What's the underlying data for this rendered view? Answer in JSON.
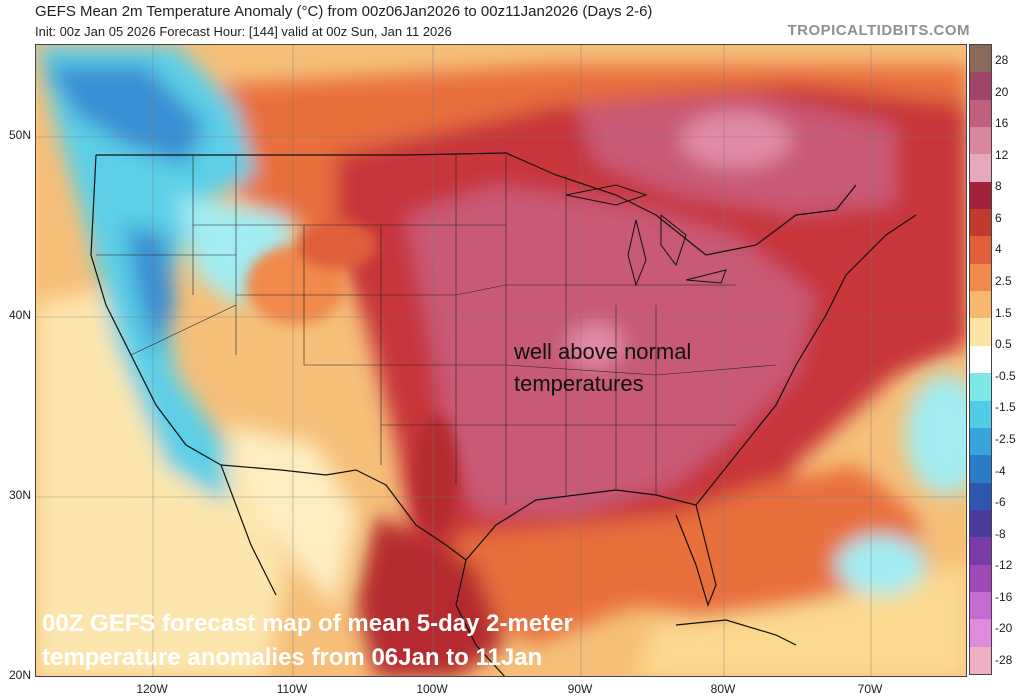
{
  "header": {
    "title": "GEFS Mean 2m Temperature Anomaly (°C) from 00z06Jan2026 to 00z11Jan2026 (Days 2-6)",
    "subtitle": "Init: 00z Jan 05 2026   Forecast Hour: [144]   valid at 00z Sun, Jan 11 2026",
    "brand": "TROPICALTIDBITS.COM"
  },
  "axes": {
    "lat_labels": [
      "50N",
      "40N",
      "30N",
      "20N"
    ],
    "lon_labels": [
      "120W",
      "110W",
      "100W",
      "90W",
      "80W",
      "70W"
    ]
  },
  "colorbar": {
    "labels": [
      "28",
      "20",
      "16",
      "12",
      "8",
      "6",
      "4",
      "2.5",
      "1.5",
      "0.5",
      "-0.5",
      "-1.5",
      "-2.5",
      "-4",
      "-6",
      "-8",
      "-12",
      "-16",
      "-20",
      "-28"
    ],
    "colors": [
      "#8a6a5a",
      "#a0466a",
      "#c0607e",
      "#d8869e",
      "#e8a8bc",
      "#a2223a",
      "#c23a2e",
      "#e05e3a",
      "#f08a4c",
      "#f6b66e",
      "#fce4a4",
      "#ffffff",
      "#7ce8e8",
      "#50cce6",
      "#35a5dc",
      "#2a7cc8",
      "#2f56b0",
      "#4a3a9c",
      "#7a3aa8",
      "#a04ab8",
      "#c46ad0",
      "#e08ade",
      "#f0b0c4"
    ]
  },
  "annotations": {
    "center_line1": "well above normal",
    "center_line2": "temperatures",
    "bottom_line1": "00Z GEFS forecast map of mean 5-day 2-meter",
    "bottom_line2": "temperature anomalies from 06Jan to 11Jan"
  },
  "palette": {
    "strong_warm": "#c85a74",
    "warm_red": "#c8343a",
    "warm_orange": "#e86a3e",
    "light_orange": "#f3a661",
    "yellow": "#fbd98e",
    "pale": "#fdeec2",
    "cool_light": "#a2ecf2",
    "cool_mid": "#5ccfe6",
    "cool_deep": "#3a8fd4"
  }
}
